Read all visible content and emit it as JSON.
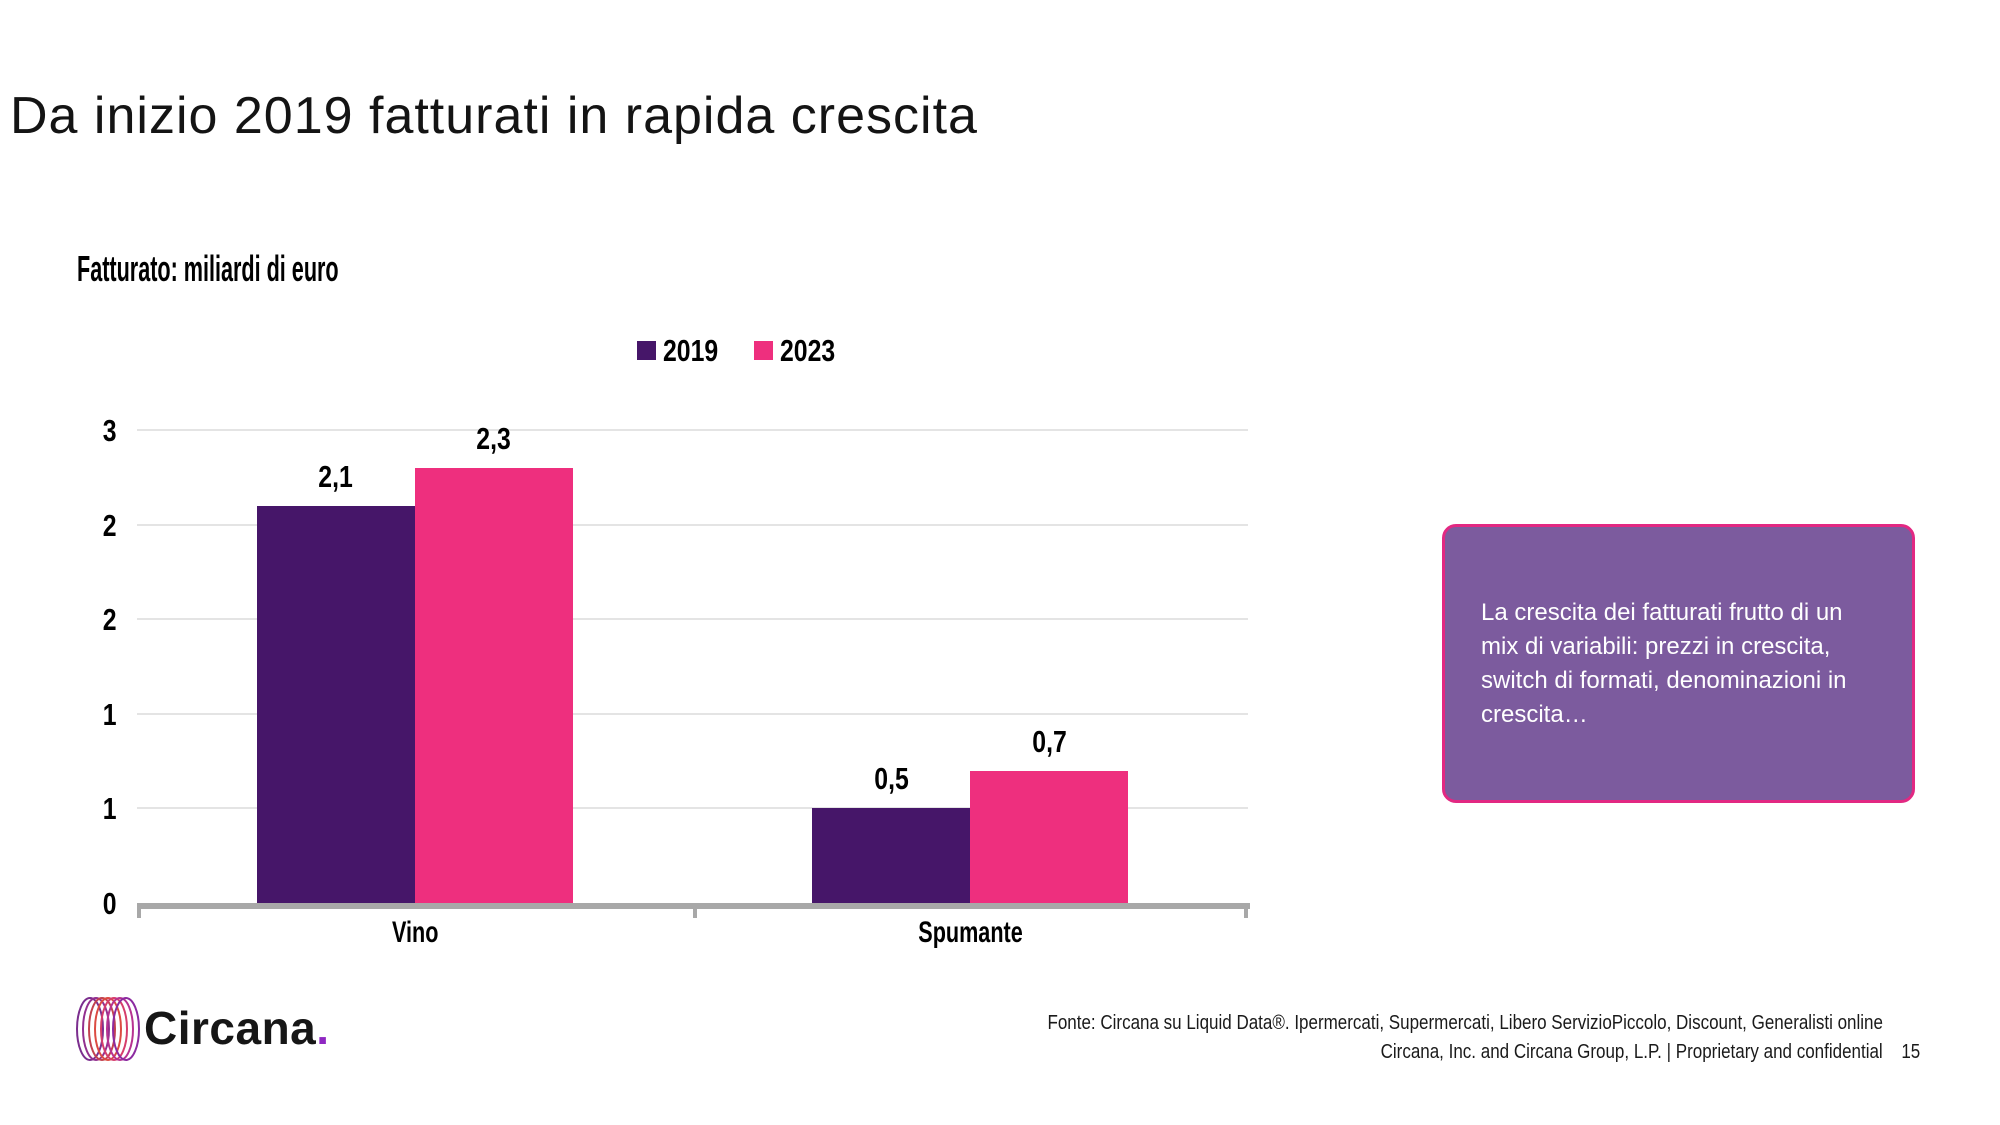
{
  "slide": {
    "title": "Da inizio 2019 fatturati in rapida crescita",
    "page_number": "15"
  },
  "chart": {
    "subtitle": "Fatturato: miliardi di euro"
  },
  "chart_data": {
    "type": "bar",
    "title": "Fatturato: miliardi di euro",
    "categories": [
      "Vino",
      "Spumante"
    ],
    "series": [
      {
        "name": "2019",
        "color": "#461669",
        "values": [
          2.1,
          0.5
        ],
        "value_labels": [
          "2,1",
          "0,5"
        ]
      },
      {
        "name": "2023",
        "color": "#EE2F7E",
        "values": [
          2.3,
          0.7
        ],
        "value_labels": [
          "2,3",
          "0,7"
        ]
      }
    ],
    "ylim": [
      0,
      2.5
    ],
    "ytick_step": 0.5,
    "ytick_labels_bottom_to_top": [
      "0",
      "1",
      "1",
      "2",
      "2",
      "3"
    ],
    "grid": true,
    "legend_position": "top-center",
    "gridline_color": "#E4E4E4",
    "axis_color": "#A8A8A8"
  },
  "callout": {
    "text": "La crescita dei fatturati frutto di un mix di variabili: prezzi in crescita, switch di formati, denominazioni in crescita…",
    "background_color": "#7C5B9E",
    "border_color": "#E22882"
  },
  "footer": {
    "source_line": "Fonte: Circana su Liquid Data®.  Ipermercati, Supermercati, Libero ServizioPiccolo, Discount, Generalisti online",
    "legal_line": "Circana, Inc. and Circana Group, L.P. |  Proprietary and confidential",
    "logo_text": "Circana",
    "logo_dot": "."
  }
}
